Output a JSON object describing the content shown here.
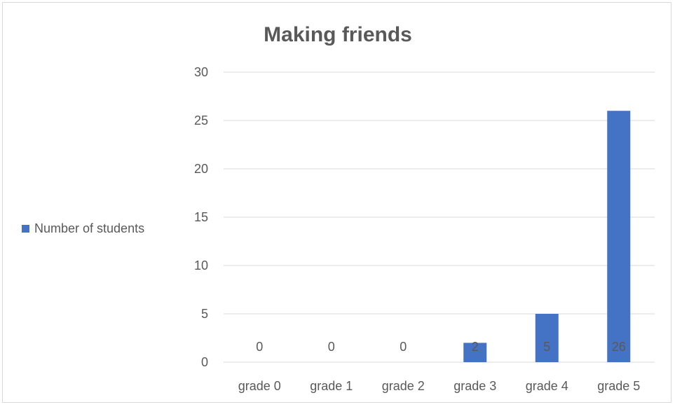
{
  "chart_data": {
    "type": "bar",
    "title": "Making friends",
    "categories": [
      "grade 0",
      "grade 1",
      "grade 2",
      "grade 3",
      "grade 4",
      "grade 5"
    ],
    "series": [
      {
        "name": "Number of students",
        "values": [
          0,
          0,
          0,
          2,
          5,
          26
        ],
        "color": "#4472c4"
      }
    ],
    "ylim": [
      0,
      30
    ],
    "yticks": [
      0,
      5,
      10,
      15,
      20,
      25,
      30
    ],
    "grid": true,
    "legend_position": "left",
    "data_labels": true,
    "colors": {
      "bar": "#4472c4",
      "grid": "#d9d9d9",
      "text": "#595959",
      "title": "#595959"
    }
  }
}
